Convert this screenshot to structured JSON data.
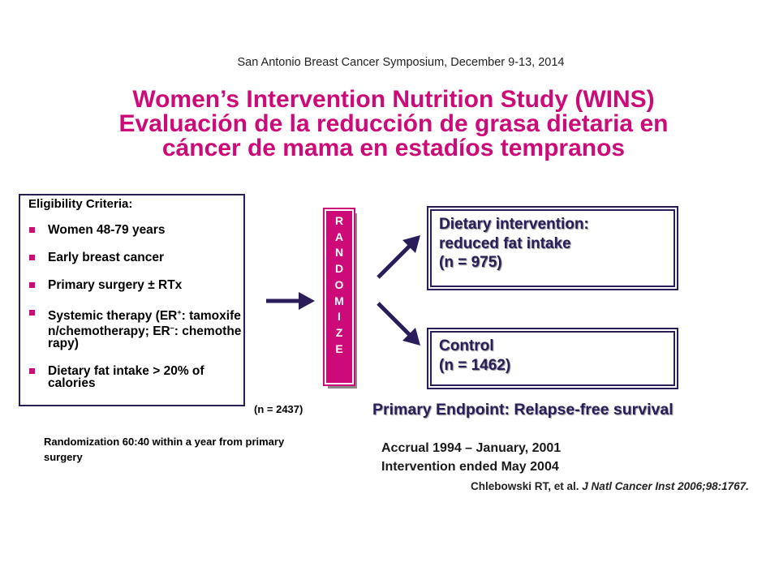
{
  "header": {
    "conference": "San Antonio Breast Cancer Symposium, December 9-13, 2014"
  },
  "title": {
    "line1": "Women’s Intervention Nutrition Study (WINS)",
    "line2": "Evaluación de la reducción de grasa dietaria en",
    "line3": "cáncer de mama en estadíos tempranos"
  },
  "eligibility": {
    "heading": "Eligibility Criteria:",
    "items": [
      {
        "text": "Women 48-79 years"
      },
      {
        "text": "Early breast cancer"
      },
      {
        "text": "Primary surgery ± RTx"
      },
      {
        "pre": "Systemic therapy (ER",
        "sup1": "+",
        "mid": ": tamoxifen/chemotherapy; ER",
        "sup2": "–",
        "post": ": chemotherapy)"
      },
      {
        "text": "Dietary fat intake > 20% of calories"
      }
    ]
  },
  "randomize": {
    "letters": [
      "R",
      "A",
      "N",
      "D",
      "O",
      "M",
      "I",
      "Z",
      "E"
    ],
    "n_total": "(n = 2437)",
    "note": "Randomization 60:40 within a year from primary surgery"
  },
  "arms": {
    "dietary": {
      "line1": "Dietary intervention:",
      "line2": "reduced fat intake",
      "line3": "(n = 975)"
    },
    "control": {
      "line1": "Control",
      "line2": "(n = 1462)"
    }
  },
  "endpoint": "Primary Endpoint: Relapse-free survival",
  "accrual": {
    "line1": "Accrual 1994 – January, 2001",
    "line2": "Intervention ended May 2004"
  },
  "citation": {
    "authors": "Chlebowski RT, et al.",
    "journal": "J Natl Cancer Inst 2006;98:1767."
  },
  "colors": {
    "title": "#cc0b79",
    "accent": "#cc0b79",
    "navy": "#2a1d5a"
  }
}
